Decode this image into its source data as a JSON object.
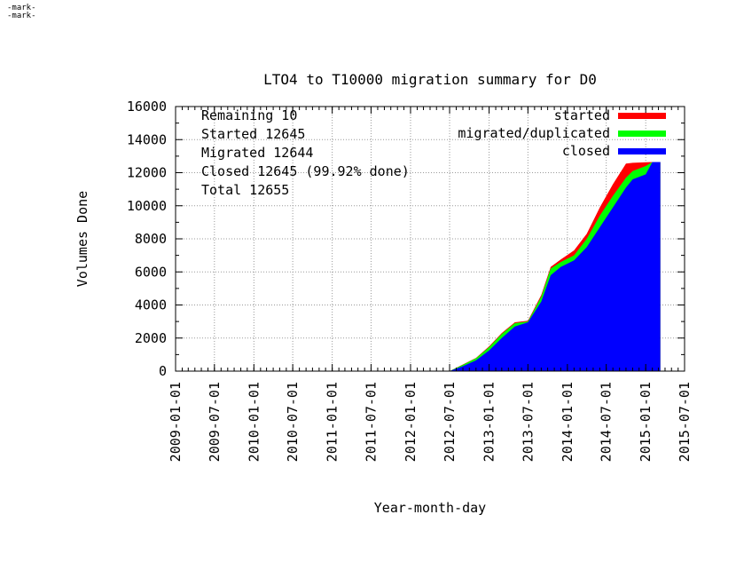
{
  "marks": [
    "-mark-",
    "-mark-"
  ],
  "chart_data": {
    "type": "area",
    "title": "LTO4 to T10000 migration summary for D0",
    "xlabel": "Year-month-day",
    "ylabel": "Volumes Done",
    "xlim": [
      "2009-01-01",
      "2015-07-01"
    ],
    "ylim": [
      0,
      16000
    ],
    "yticks": [
      0,
      2000,
      4000,
      6000,
      8000,
      10000,
      12000,
      14000,
      16000
    ],
    "xticks": [
      "2009-01-01",
      "2009-07-01",
      "2010-01-01",
      "2010-07-01",
      "2011-01-01",
      "2011-07-01",
      "2012-01-01",
      "2012-07-01",
      "2013-01-01",
      "2013-07-01",
      "2014-01-01",
      "2014-07-01",
      "2015-01-01",
      "2015-07-01"
    ],
    "grid": true,
    "legend_position": "top-right",
    "summary_lines": [
      "Remaining 10",
      "Started 12645",
      "Migrated 12644",
      "Closed 12645 (99.92% done)",
      "Total 12655"
    ],
    "colors": {
      "started": "#ff0000",
      "migrated": "#00ff00",
      "closed": "#0000ff"
    },
    "series": [
      {
        "name": "started",
        "x": [
          "2012-07-01",
          "2012-09-01",
          "2012-11-01",
          "2013-01-01",
          "2013-03-01",
          "2013-05-01",
          "2013-07-01",
          "2013-09-01",
          "2013-10-15",
          "2013-12-01",
          "2014-02-01",
          "2014-04-01",
          "2014-06-01",
          "2014-08-01",
          "2014-10-01",
          "2014-11-01",
          "2015-01-01",
          "2015-02-01",
          "2015-03-10"
        ],
        "y": [
          0,
          400,
          800,
          1500,
          2300,
          2950,
          3050,
          4600,
          6300,
          6750,
          7300,
          8300,
          9900,
          11300,
          12550,
          12600,
          12630,
          12645,
          12645
        ]
      },
      {
        "name": "migrated/duplicated",
        "x": [
          "2012-07-01",
          "2012-09-01",
          "2012-11-01",
          "2013-01-01",
          "2013-03-01",
          "2013-05-01",
          "2013-07-01",
          "2013-09-01",
          "2013-10-15",
          "2013-12-01",
          "2014-02-01",
          "2014-04-01",
          "2014-06-01",
          "2014-08-01",
          "2014-10-01",
          "2014-11-01",
          "2015-01-01",
          "2015-02-01",
          "2015-03-10"
        ],
        "y": [
          0,
          380,
          780,
          1450,
          2250,
          2900,
          3000,
          4500,
          6200,
          6600,
          7000,
          8000,
          9400,
          10600,
          11700,
          12100,
          12400,
          12644,
          12644
        ]
      },
      {
        "name": "closed",
        "x": [
          "2012-07-01",
          "2012-09-01",
          "2012-11-01",
          "2013-01-01",
          "2013-03-01",
          "2013-05-01",
          "2013-07-01",
          "2013-09-01",
          "2013-10-15",
          "2013-12-01",
          "2014-02-01",
          "2014-04-01",
          "2014-06-01",
          "2014-08-01",
          "2014-10-01",
          "2014-11-01",
          "2015-01-01",
          "2015-02-01",
          "2015-03-10"
        ],
        "y": [
          0,
          300,
          650,
          1250,
          2000,
          2700,
          2950,
          4200,
          5800,
          6300,
          6700,
          7500,
          8700,
          9900,
          11100,
          11600,
          11900,
          12645,
          12645
        ]
      }
    ]
  }
}
